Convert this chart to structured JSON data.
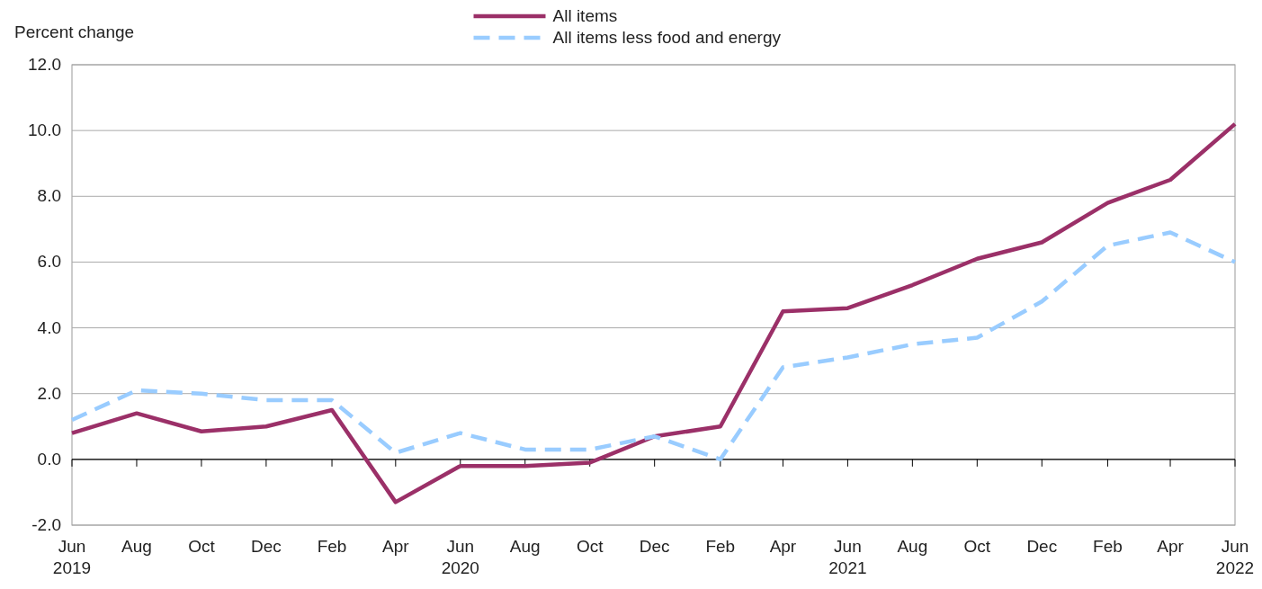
{
  "chart_data": {
    "type": "line",
    "ylabel": "Percent change",
    "x": [
      "2019-06",
      "2019-08",
      "2019-10",
      "2019-12",
      "2020-02",
      "2020-04",
      "2020-06",
      "2020-08",
      "2020-10",
      "2020-12",
      "2021-02",
      "2021-04",
      "2021-06",
      "2021-08",
      "2021-10",
      "2021-12",
      "2022-02",
      "2022-04",
      "2022-06"
    ],
    "series": [
      {
        "name": "All items",
        "color": "#9b3068",
        "line_style": "solid",
        "values": [
          0.8,
          1.4,
          0.85,
          1.0,
          1.5,
          -1.3,
          -0.2,
          -0.2,
          -0.1,
          0.7,
          1.0,
          4.5,
          4.6,
          5.3,
          6.1,
          6.6,
          7.8,
          8.5,
          10.2
        ]
      },
      {
        "name": "All items less food and energy",
        "color": "#99ccff",
        "line_style": "dashed",
        "values": [
          1.2,
          2.1,
          2.0,
          1.8,
          1.8,
          0.2,
          0.8,
          0.3,
          0.3,
          0.7,
          0.0,
          2.8,
          3.1,
          3.5,
          3.7,
          4.8,
          6.5,
          6.9,
          6.0
        ]
      }
    ],
    "xlim": [
      "2019-06",
      "2022-06"
    ],
    "xticks": [
      {
        "value": "2019-06",
        "label": "Jun\n2019"
      },
      {
        "value": "2019-08",
        "label": "Aug"
      },
      {
        "value": "2019-10",
        "label": "Oct"
      },
      {
        "value": "2019-12",
        "label": "Dec"
      },
      {
        "value": "2020-02",
        "label": "Feb"
      },
      {
        "value": "2020-04",
        "label": "Apr"
      },
      {
        "value": "2020-06",
        "label": "Jun\n2020"
      },
      {
        "value": "2020-08",
        "label": "Aug"
      },
      {
        "value": "2020-10",
        "label": "Oct"
      },
      {
        "value": "2020-12",
        "label": "Dec"
      },
      {
        "value": "2021-02",
        "label": "Feb"
      },
      {
        "value": "2021-04",
        "label": "Apr"
      },
      {
        "value": "2021-06",
        "label": "Jun\n2021"
      },
      {
        "value": "2021-08",
        "label": "Aug"
      },
      {
        "value": "2021-10",
        "label": "Oct"
      },
      {
        "value": "2021-12",
        "label": "Dec"
      },
      {
        "value": "2022-02",
        "label": "Feb"
      },
      {
        "value": "2022-04",
        "label": "Apr"
      },
      {
        "value": "2022-06",
        "label": "Jun\n2022"
      }
    ],
    "ylim": [
      -2,
      12
    ],
    "yticks": [
      {
        "value": -2,
        "label": "-2.0"
      },
      {
        "value": 0,
        "label": "0.0"
      },
      {
        "value": 2,
        "label": "2.0"
      },
      {
        "value": 4,
        "label": "4.0"
      },
      {
        "value": 6,
        "label": "6.0"
      },
      {
        "value": 8,
        "label": "8.0"
      },
      {
        "value": 10,
        "label": "10.0"
      },
      {
        "value": 12,
        "label": "12.0"
      }
    ],
    "grid": "y",
    "legend": "top",
    "marker": "none"
  }
}
